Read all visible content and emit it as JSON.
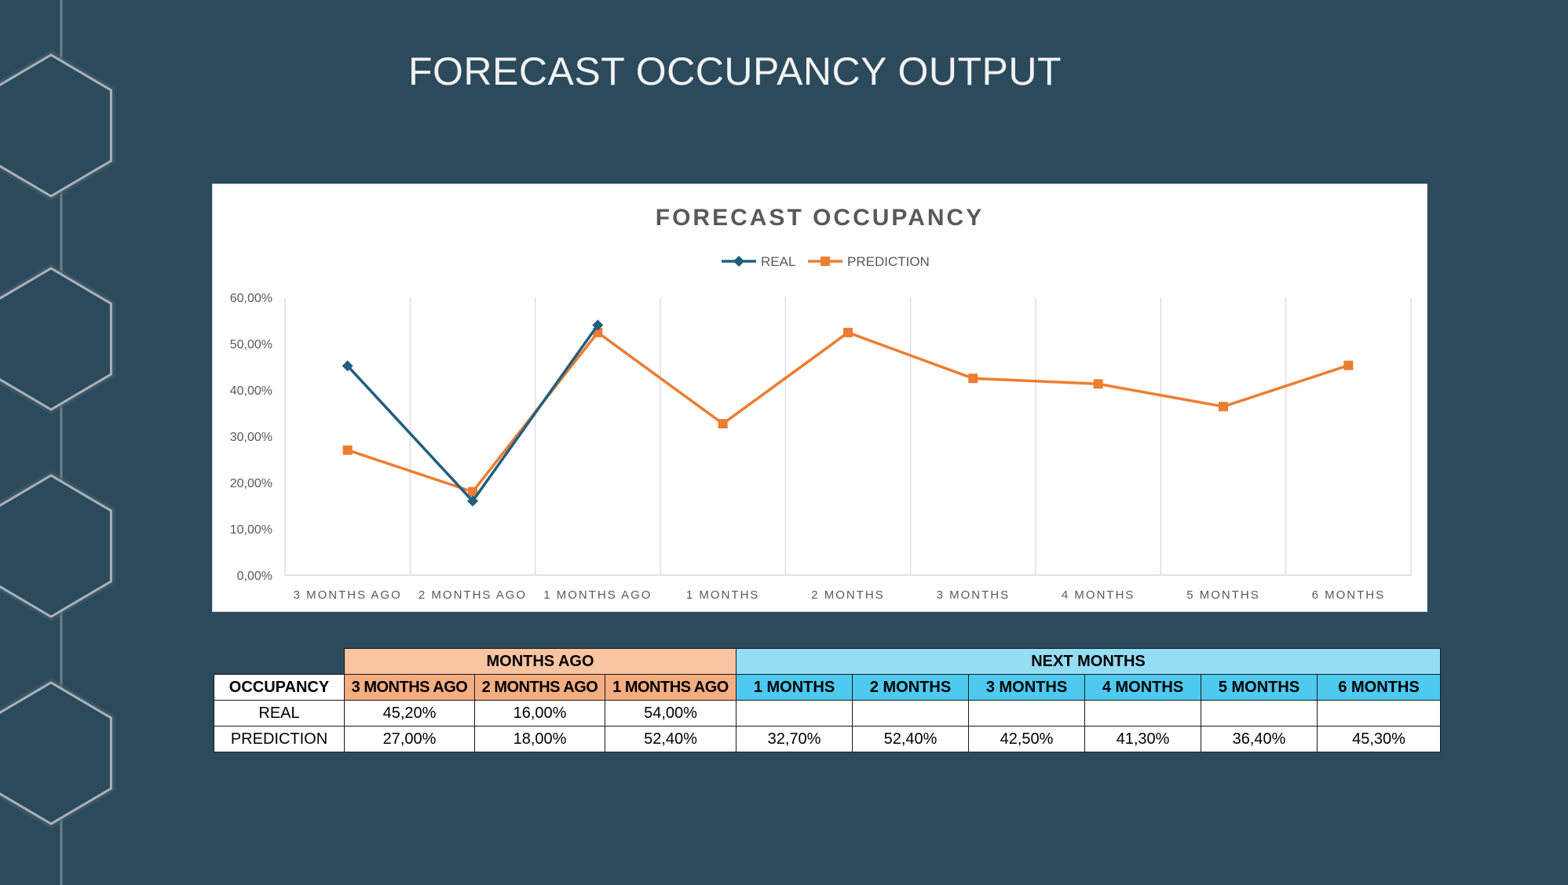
{
  "page": {
    "title": "FORECAST OCCUPANCY OUTPUT"
  },
  "chart_data": {
    "type": "line",
    "title": "FORECAST OCCUPANCY",
    "categories": [
      "3 MONTHS AGO",
      "2 MONTHS AGO",
      "1 MONTHS AGO",
      "1 MONTHS",
      "2 MONTHS",
      "3 MONTHS",
      "4 MONTHS",
      "5 MONTHS",
      "6 MONTHS"
    ],
    "series": [
      {
        "name": "REAL",
        "values": [
          45.2,
          16.0,
          54.0,
          null,
          null,
          null,
          null,
          null,
          null
        ],
        "color": "#1f5f80",
        "marker": "diamond"
      },
      {
        "name": "PREDICTION",
        "values": [
          27.0,
          18.0,
          52.4,
          32.7,
          52.4,
          42.5,
          41.3,
          36.4,
          45.3
        ],
        "color": "#ed7d31",
        "marker": "square"
      }
    ],
    "ylim": [
      0,
      60
    ],
    "yticks": [
      "0,00%",
      "10,00%",
      "20,00%",
      "30,00%",
      "40,00%",
      "50,00%",
      "60,00%"
    ],
    "xlabel": "",
    "ylabel": "",
    "grid": "vertical",
    "legend_position": "top"
  },
  "table": {
    "group_headers": {
      "months_ago": "MONTHS AGO",
      "next_months": "NEXT MONTHS"
    },
    "row_header": "OCCUPANCY",
    "columns_ago": [
      "3 MONTHS AGO",
      "2 MONTHS AGO",
      "1 MONTHS AGO"
    ],
    "columns_next": [
      "1 MONTHS",
      "2 MONTHS",
      "3 MONTHS",
      "4 MONTHS",
      "5 MONTHS",
      "6 MONTHS"
    ],
    "rows": [
      {
        "label": "REAL",
        "values": [
          "45,20%",
          "16,00%",
          "54,00%",
          "",
          "",
          "",
          "",
          "",
          ""
        ]
      },
      {
        "label": "PREDICTION",
        "values": [
          "27,00%",
          "18,00%",
          "52,40%",
          "32,70%",
          "52,40%",
          "42,50%",
          "41,30%",
          "36,40%",
          "45,30%"
        ]
      }
    ]
  },
  "colors": {
    "background": "#2b4a5c",
    "real_series": "#1f5f80",
    "prediction_series": "#ed7d31",
    "months_ago_header": "#f8c4a2",
    "next_months_header": "#95dcf5"
  }
}
